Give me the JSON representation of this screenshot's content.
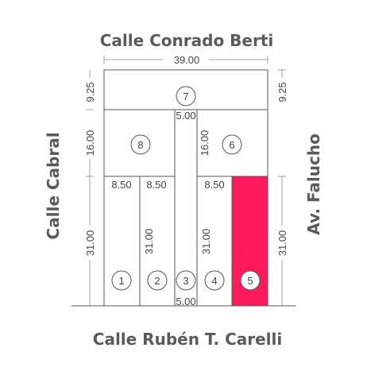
{
  "streets": {
    "north": "Calle Conrado Berti",
    "south": "Calle Rubén T. Carelli",
    "west": "Calle Cabral",
    "east": "Av. Falucho"
  },
  "dimensions": {
    "total_width": "39.00",
    "top_depth_left": "9.25",
    "top_depth_right": "9.25",
    "mid_depth_left": "16.00",
    "mid_depth_right": "16.00",
    "bottom_depth_left": "31.00",
    "bottom_depth_right": "31.00",
    "lot1_width": "8.50",
    "lot2_width": "8.50",
    "lot4_width": "8.50",
    "lot8_depth": "16.00",
    "lot2_depth": "31.00",
    "lot4_depth": "31.00",
    "passage_top": "5.00",
    "passage_bottom": "5.00"
  },
  "lots": [
    {
      "number": "1",
      "highlighted": false
    },
    {
      "number": "2",
      "highlighted": false
    },
    {
      "number": "3",
      "highlighted": false
    },
    {
      "number": "4",
      "highlighted": false
    },
    {
      "number": "5",
      "highlighted": true
    },
    {
      "number": "6",
      "highlighted": false
    },
    {
      "number": "7",
      "highlighted": false
    },
    {
      "number": "8",
      "highlighted": false
    }
  ],
  "colors": {
    "highlight": "#ff1a5c",
    "lines": "#555555",
    "text": "#5a5a5a"
  }
}
